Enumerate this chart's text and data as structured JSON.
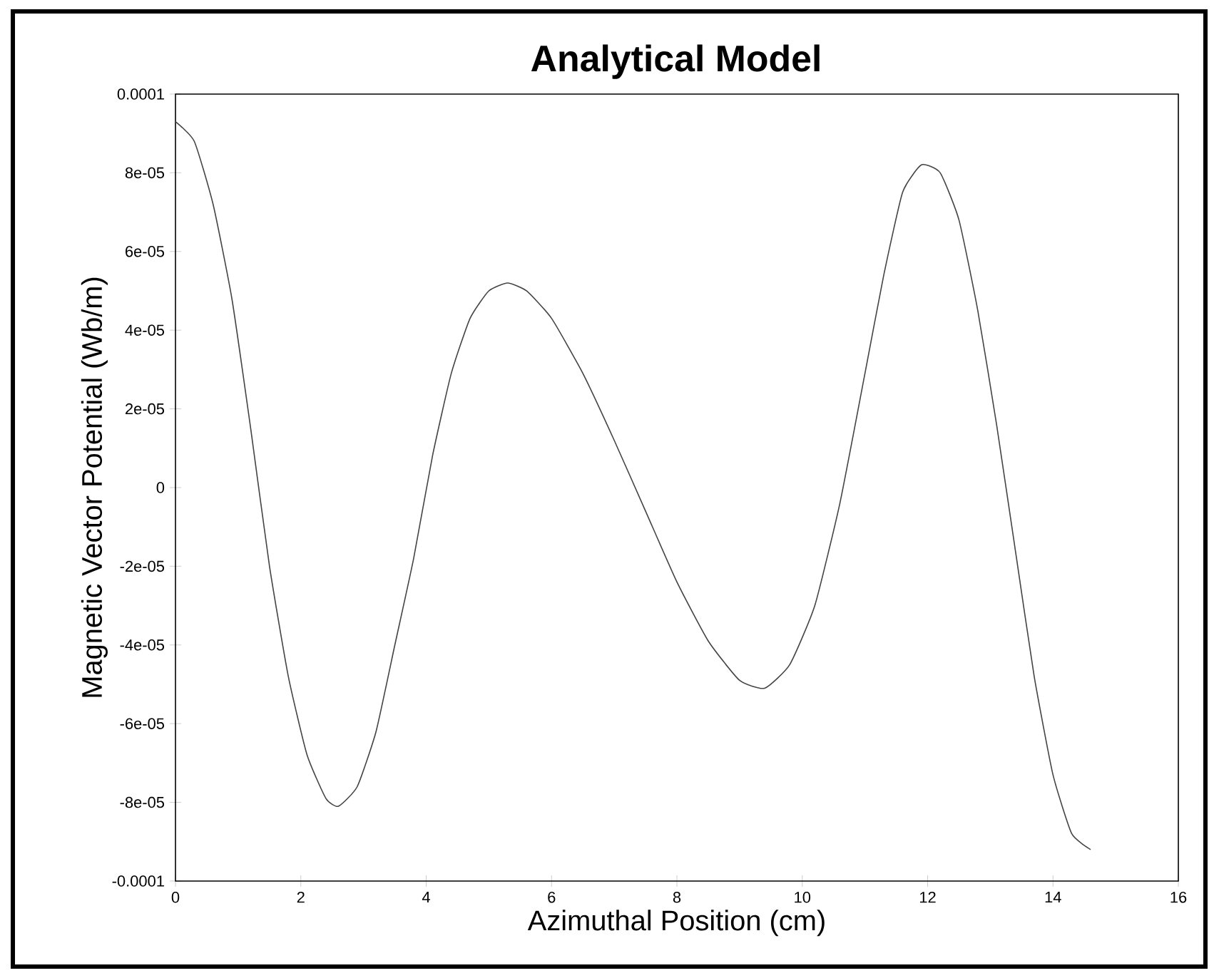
{
  "chart_data": {
    "type": "line",
    "title": "Analytical Model",
    "xlabel": "Azimuthal Position (cm)",
    "ylabel": "Magnetic Vector Potential (Wb/m)",
    "xlim": [
      0,
      16
    ],
    "xticks": [
      0,
      2,
      4,
      6,
      8,
      10,
      12,
      14,
      16
    ],
    "ylim": [
      -0.0001,
      0.0001
    ],
    "yticks": [
      {
        "value": -0.0001,
        "label": "-0.0001"
      },
      {
        "value": -8e-05,
        "label": "-8e-05"
      },
      {
        "value": -6e-05,
        "label": "-6e-05"
      },
      {
        "value": -4e-05,
        "label": "-4e-05"
      },
      {
        "value": -2e-05,
        "label": "-2e-05"
      },
      {
        "value": 0,
        "label": "0"
      },
      {
        "value": 2e-05,
        "label": "2e-05"
      },
      {
        "value": 4e-05,
        "label": "4e-05"
      },
      {
        "value": 6e-05,
        "label": "6e-05"
      },
      {
        "value": 8e-05,
        "label": "8e-05"
      },
      {
        "value": 0.0001,
        "label": "0.0001"
      }
    ],
    "marker": "none",
    "line_style": "solid",
    "series": [
      {
        "color": "#444444",
        "x": [
          0,
          0.3,
          0.6,
          0.9,
          1.2,
          1.5,
          1.8,
          2.1,
          2.4,
          2.6,
          2.9,
          3.2,
          3.5,
          3.8,
          4.1,
          4.4,
          4.7,
          5.0,
          5.3,
          5.6,
          6.0,
          6.5,
          7.0,
          7.5,
          8.0,
          8.5,
          9.0,
          9.4,
          9.8,
          10.2,
          10.6,
          11.0,
          11.3,
          11.6,
          11.9,
          12.2,
          12.5,
          12.8,
          13.1,
          13.4,
          13.7,
          14.0,
          14.3,
          14.6
        ],
        "values": [
          9.3e-05,
          8.8e-05,
          7.2e-05,
          4.8e-05,
          1.5e-05,
          -2e-05,
          -4.8e-05,
          -6.8e-05,
          -7.9e-05,
          -8.1e-05,
          -7.6e-05,
          -6.2e-05,
          -4e-05,
          -1.8e-05,
          8e-06,
          2.9e-05,
          4.3e-05,
          5e-05,
          5.2e-05,
          5e-05,
          4.3e-05,
          2.9e-05,
          1.2e-05,
          -6e-06,
          -2.4e-05,
          -3.9e-05,
          -4.9e-05,
          -5.1e-05,
          -4.5e-05,
          -3e-05,
          -4e-06,
          2.9e-05,
          5.4e-05,
          7.5e-05,
          8.2e-05,
          8e-05,
          6.8e-05,
          4.5e-05,
          1.6e-05,
          -1.6e-05,
          -4.8e-05,
          -7.3e-05,
          -8.8e-05,
          -9.2e-05
        ]
      }
    ]
  }
}
